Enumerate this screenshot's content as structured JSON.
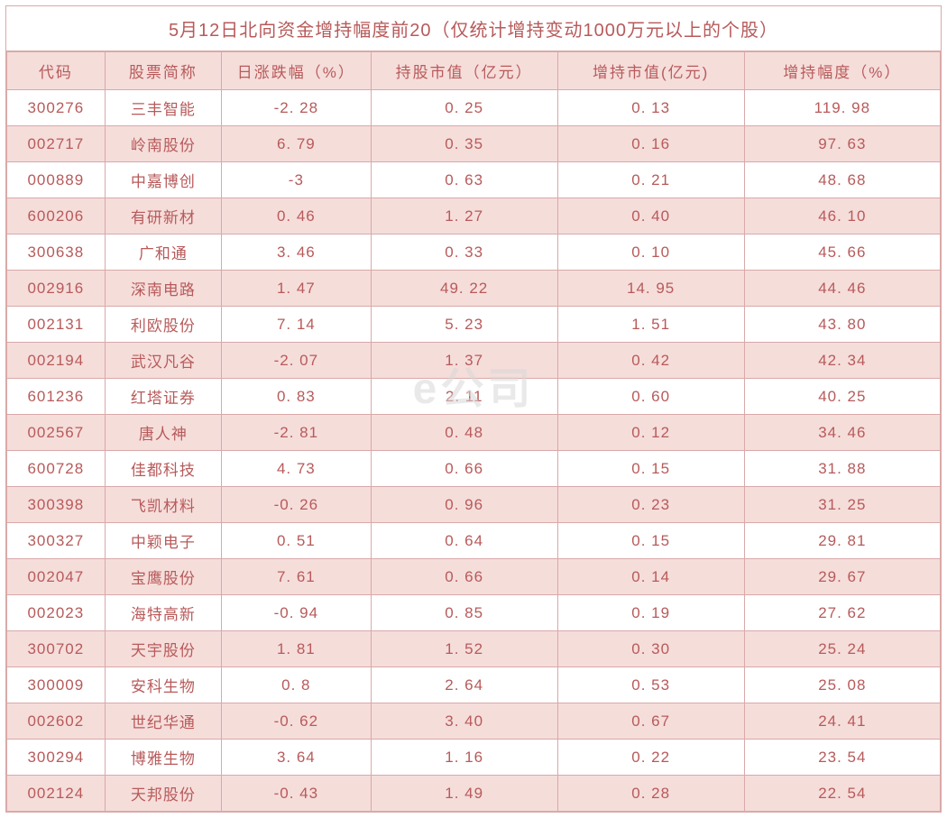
{
  "table": {
    "title": "5月12日北向资金增持幅度前20（仅统计增持变动1000万元以上的个股）",
    "title_color": "#b85a5a",
    "title_fontsize": 20,
    "header_bg": "#f5ddda",
    "header_color": "#b85a5a",
    "row_even_bg": "#f5ddda",
    "row_odd_bg": "#ffffff",
    "border_color": "#d9a9a9",
    "cell_color": "#b85a5a",
    "cell_fontsize": 17,
    "watermark_text": "e公司",
    "columns": [
      "代码",
      "股票简称",
      "日涨跌幅（%）",
      "持股市值（亿元）",
      "增持市值(亿元)",
      "增持幅度（%）"
    ],
    "column_widths_pct": [
      10.5,
      12.5,
      16,
      20,
      20,
      21
    ],
    "rows": [
      [
        "300276",
        "三丰智能",
        "-2. 28",
        "0. 25",
        "0. 13",
        "119. 98"
      ],
      [
        "002717",
        "岭南股份",
        "6. 79",
        "0. 35",
        "0. 16",
        "97. 63"
      ],
      [
        "000889",
        "中嘉博创",
        "-3",
        "0. 63",
        "0. 21",
        "48. 68"
      ],
      [
        "600206",
        "有研新材",
        "0. 46",
        "1. 27",
        "0. 40",
        "46. 10"
      ],
      [
        "300638",
        "广和通",
        "3. 46",
        "0. 33",
        "0. 10",
        "45. 66"
      ],
      [
        "002916",
        "深南电路",
        "1. 47",
        "49. 22",
        "14. 95",
        "44. 46"
      ],
      [
        "002131",
        "利欧股份",
        "7. 14",
        "5. 23",
        "1. 51",
        "43. 80"
      ],
      [
        "002194",
        "武汉凡谷",
        "-2. 07",
        "1. 37",
        "0. 42",
        "42. 34"
      ],
      [
        "601236",
        "红塔证券",
        "0. 83",
        "2. 11",
        "0. 60",
        "40. 25"
      ],
      [
        "002567",
        "唐人神",
        "-2. 81",
        "0. 48",
        "0. 12",
        "34. 46"
      ],
      [
        "600728",
        "佳都科技",
        "4. 73",
        "0. 66",
        "0. 15",
        "31. 88"
      ],
      [
        "300398",
        "飞凯材料",
        "-0. 26",
        "0. 96",
        "0. 23",
        "31. 25"
      ],
      [
        "300327",
        "中颖电子",
        "0. 51",
        "0. 64",
        "0. 15",
        "29. 81"
      ],
      [
        "002047",
        "宝鹰股份",
        "7. 61",
        "0. 66",
        "0. 14",
        "29. 67"
      ],
      [
        "002023",
        "海特高新",
        "-0. 94",
        "0. 85",
        "0. 19",
        "27. 62"
      ],
      [
        "300702",
        "天宇股份",
        "1. 81",
        "1. 52",
        "0. 30",
        "25. 24"
      ],
      [
        "300009",
        "安科生物",
        "0. 8",
        "2. 64",
        "0. 53",
        "25. 08"
      ],
      [
        "002602",
        "世纪华通",
        "-0. 62",
        "3. 40",
        "0. 67",
        "24. 41"
      ],
      [
        "300294",
        "博雅生物",
        "3. 64",
        "1. 16",
        "0. 22",
        "23. 54"
      ],
      [
        "002124",
        "天邦股份",
        "-0. 43",
        "1. 49",
        "0. 28",
        "22. 54"
      ]
    ]
  }
}
